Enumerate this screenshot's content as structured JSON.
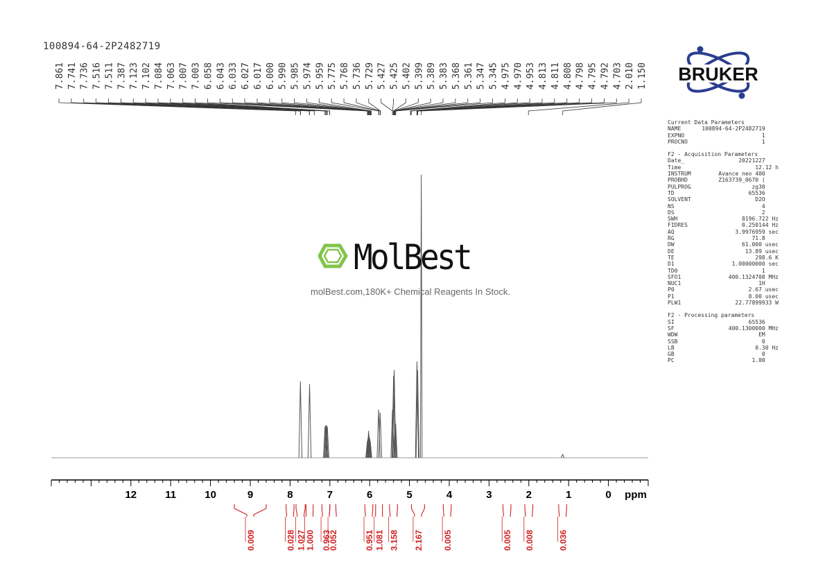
{
  "sample_name": "100894-64-2P2482719",
  "brand": "BRUKER",
  "watermark": {
    "name": "MolBest",
    "tagline": "molBest.com,180K+ Chemical Reagents In Stock."
  },
  "parameters": [
    {
      "title": "Current Data Parameters",
      "rows": [
        {
          "key": "NAME",
          "value": "100894-64-2P2482719",
          "unit": ""
        },
        {
          "key": "EXPNO",
          "value": "1",
          "unit": ""
        },
        {
          "key": "PROCNO",
          "value": "1",
          "unit": ""
        }
      ]
    },
    {
      "title": "F2 - Acquisition Parameters",
      "rows": [
        {
          "key": "Date_",
          "value": "20221227",
          "unit": ""
        },
        {
          "key": "Time",
          "value": "12.12",
          "unit": "h"
        },
        {
          "key": "INSTRUM",
          "value": "Avance neo 400",
          "unit": ""
        },
        {
          "key": "PROBHD",
          "value": "Z163739_0670 (",
          "unit": ""
        },
        {
          "key": "PULPROG",
          "value": "zg30",
          "unit": ""
        },
        {
          "key": "TD",
          "value": "65536",
          "unit": ""
        },
        {
          "key": "SOLVENT",
          "value": "D2O",
          "unit": ""
        },
        {
          "key": "NS",
          "value": "4",
          "unit": ""
        },
        {
          "key": "DS",
          "value": "2",
          "unit": ""
        },
        {
          "key": "SWH",
          "value": "8196.722",
          "unit": "Hz"
        },
        {
          "key": "FIDRES",
          "value": "0.250144",
          "unit": "Hz"
        },
        {
          "key": "AQ",
          "value": "3.9976959",
          "unit": "sec"
        },
        {
          "key": "RG",
          "value": "71.8",
          "unit": ""
        },
        {
          "key": "DW",
          "value": "61.000",
          "unit": "usec"
        },
        {
          "key": "DE",
          "value": "13.89",
          "unit": "usec"
        },
        {
          "key": "TE",
          "value": "298.6",
          "unit": "K"
        },
        {
          "key": "D1",
          "value": "1.00000000",
          "unit": "sec"
        },
        {
          "key": "TD0",
          "value": "1",
          "unit": ""
        },
        {
          "key": "SFO1",
          "value": "400.1324708",
          "unit": "MHz"
        },
        {
          "key": "NUC1",
          "value": "1H",
          "unit": ""
        },
        {
          "key": "P0",
          "value": "2.67",
          "unit": "usec"
        },
        {
          "key": "P1",
          "value": "8.00",
          "unit": "usec"
        },
        {
          "key": "PLW1",
          "value": "22.77899933",
          "unit": "W"
        }
      ]
    },
    {
      "title": "F2 - Processing parameters",
      "rows": [
        {
          "key": "SI",
          "value": "65536",
          "unit": ""
        },
        {
          "key": "SF",
          "value": "400.1300000",
          "unit": "MHz"
        },
        {
          "key": "WDW",
          "value": "EM",
          "unit": ""
        },
        {
          "key": "SSB",
          "value": "0",
          "unit": ""
        },
        {
          "key": "LB",
          "value": "0.30",
          "unit": "Hz"
        },
        {
          "key": "GB",
          "value": "0",
          "unit": ""
        },
        {
          "key": "PC",
          "value": "1.00",
          "unit": ""
        }
      ]
    }
  ],
  "chart_data": {
    "type": "line",
    "xlabel": "ppm",
    "xlim": [
      14.0,
      -1.0
    ],
    "x_reversed": true,
    "x_ticks": [
      12,
      11,
      10,
      9,
      8,
      7,
      6,
      5,
      4,
      3,
      2,
      1,
      0
    ],
    "peak_labels": [
      "7.861",
      "7.741",
      "7.736",
      "7.516",
      "7.511",
      "7.387",
      "7.123",
      "7.102",
      "7.084",
      "7.063",
      "7.007",
      "7.003",
      "6.058",
      "6.043",
      "6.033",
      "6.027",
      "6.017",
      "6.000",
      "5.990",
      "5.985",
      "5.974",
      "5.959",
      "5.775",
      "5.768",
      "5.736",
      "5.729",
      "5.427",
      "5.425",
      "5.402",
      "5.399",
      "5.389",
      "5.383",
      "5.368",
      "5.361",
      "5.347",
      "5.345",
      "4.975",
      "4.970",
      "4.953",
      "4.813",
      "4.811",
      "4.808",
      "4.798",
      "4.795",
      "4.792",
      "4.703",
      "2.010",
      "1.150"
    ],
    "peaks": [
      {
        "ppm": 7.74,
        "height": 0.27
      },
      {
        "ppm": 7.51,
        "height": 0.26
      },
      {
        "ppm": 7.123,
        "height": 0.11
      },
      {
        "ppm": 7.102,
        "height": 0.115
      },
      {
        "ppm": 7.084,
        "height": 0.115
      },
      {
        "ppm": 7.063,
        "height": 0.11
      },
      {
        "ppm": 6.058,
        "height": 0.06
      },
      {
        "ppm": 6.043,
        "height": 0.07
      },
      {
        "ppm": 6.027,
        "height": 0.095
      },
      {
        "ppm": 6.017,
        "height": 0.08
      },
      {
        "ppm": 6.0,
        "height": 0.07
      },
      {
        "ppm": 5.985,
        "height": 0.06
      },
      {
        "ppm": 5.775,
        "height": 0.17
      },
      {
        "ppm": 5.736,
        "height": 0.16
      },
      {
        "ppm": 5.427,
        "height": 0.17
      },
      {
        "ppm": 5.399,
        "height": 0.29
      },
      {
        "ppm": 5.383,
        "height": 0.31
      },
      {
        "ppm": 5.361,
        "height": 0.13
      },
      {
        "ppm": 5.347,
        "height": 0.12
      },
      {
        "ppm": 4.811,
        "height": 0.34
      },
      {
        "ppm": 4.795,
        "height": 0.31
      },
      {
        "ppm": 4.703,
        "height": 1.0
      },
      {
        "ppm": 1.15,
        "height": 0.012
      }
    ],
    "integrals": [
      {
        "value": "0.009",
        "from": 9.4,
        "to": 8.6
      },
      {
        "value": "0.028",
        "from": 8.1,
        "to": 7.9
      },
      {
        "value": "1.027",
        "from": 7.85,
        "to": 7.62
      },
      {
        "value": "1.000",
        "from": 7.6,
        "to": 7.42
      },
      {
        "value": "0.963",
        "from": 7.2,
        "to": 7.0
      },
      {
        "value": "0.052",
        "from": 7.0,
        "to": 6.85
      },
      {
        "value": "0.951",
        "from": 6.12,
        "to": 5.92
      },
      {
        "value": "1.081",
        "from": 5.85,
        "to": 5.68
      },
      {
        "value": "3.158",
        "from": 5.5,
        "to": 5.3
      },
      {
        "value": "2.167",
        "from": 4.95,
        "to": 4.62
      },
      {
        "value": "0.005",
        "from": 4.15,
        "to": 3.95
      },
      {
        "value": "0.005",
        "from": 2.65,
        "to": 2.45
      },
      {
        "value": "0.008",
        "from": 2.1,
        "to": 1.9
      },
      {
        "value": "0.036",
        "from": 1.25,
        "to": 1.05
      }
    ]
  }
}
